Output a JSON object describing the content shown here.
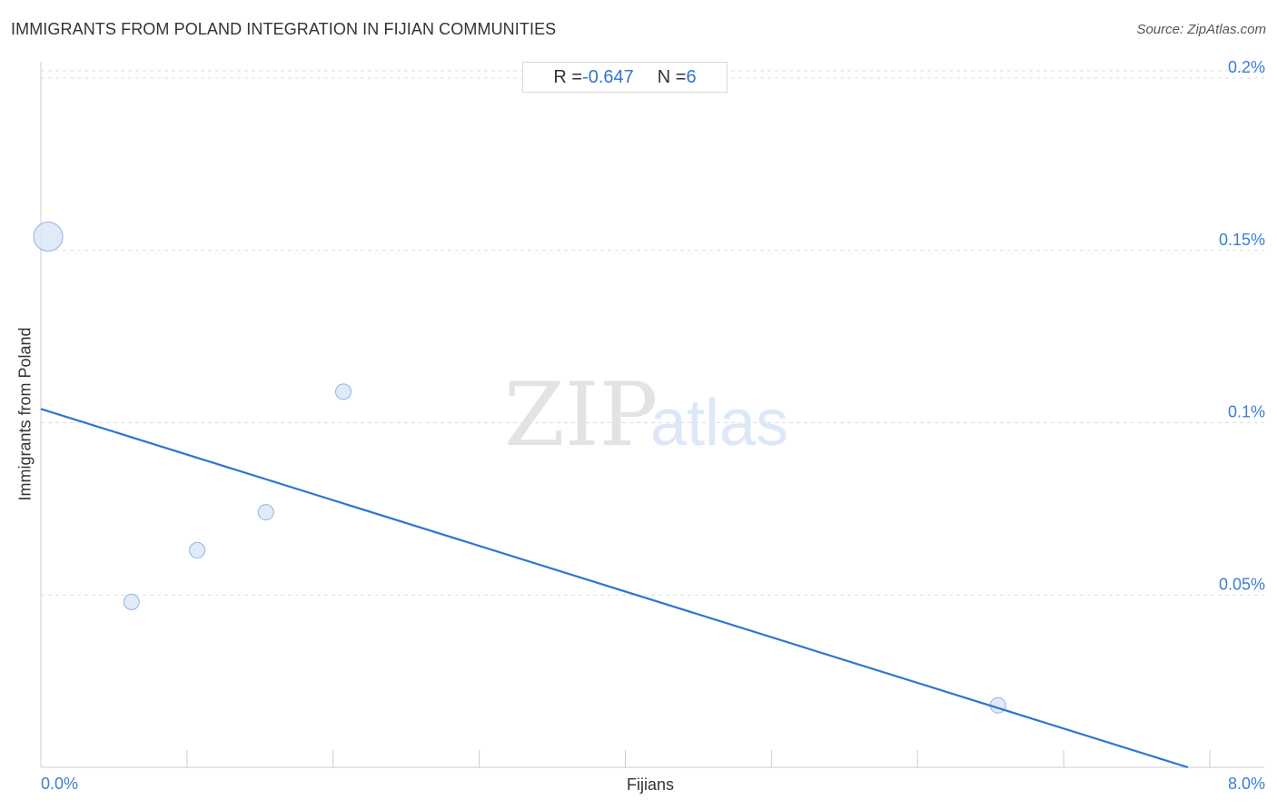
{
  "header": {
    "title": "IMMIGRANTS FROM POLAND INTEGRATION IN FIJIAN COMMUNITIES",
    "source": "Source: ZipAtlas.com"
  },
  "stats": {
    "r_label": "R = ",
    "r_value": "-0.647",
    "n_label": "N = ",
    "n_value": "6"
  },
  "watermark": {
    "zip": "ZIP",
    "atlas": "atlas"
  },
  "colors": {
    "accent": "#2f74d0",
    "point_fill": "#dbe7f8",
    "point_stroke": "#8fb4e6",
    "grid": "#dddddd"
  },
  "chart_data": {
    "type": "scatter",
    "xlabel": "Fijians",
    "ylabel": "Immigrants from Poland",
    "xlim": [
      0,
      8.0
    ],
    "ylim": [
      0,
      0.2
    ],
    "x_tick_labels": [
      {
        "value": 0,
        "label": "0.0%"
      },
      {
        "value": 8.0,
        "label": "8.0%"
      }
    ],
    "y_tick_labels": [
      {
        "value": 0.2,
        "label": "0.2%"
      },
      {
        "value": 0.15,
        "label": "0.15%"
      },
      {
        "value": 0.1,
        "label": "0.1%"
      },
      {
        "value": 0.05,
        "label": "0.05%"
      }
    ],
    "grid": "horizontal dashed",
    "points": [
      {
        "x": 0.05,
        "y": 0.154,
        "size": "large"
      },
      {
        "x": 0.62,
        "y": 0.048,
        "size": "small"
      },
      {
        "x": 1.07,
        "y": 0.063,
        "size": "small"
      },
      {
        "x": 1.54,
        "y": 0.074,
        "size": "small"
      },
      {
        "x": 2.07,
        "y": 0.109,
        "size": "small"
      },
      {
        "x": 6.55,
        "y": 0.018,
        "size": "small"
      }
    ],
    "trendline": {
      "x": [
        0,
        7.85
      ],
      "y": [
        0.104,
        0.0
      ]
    }
  }
}
